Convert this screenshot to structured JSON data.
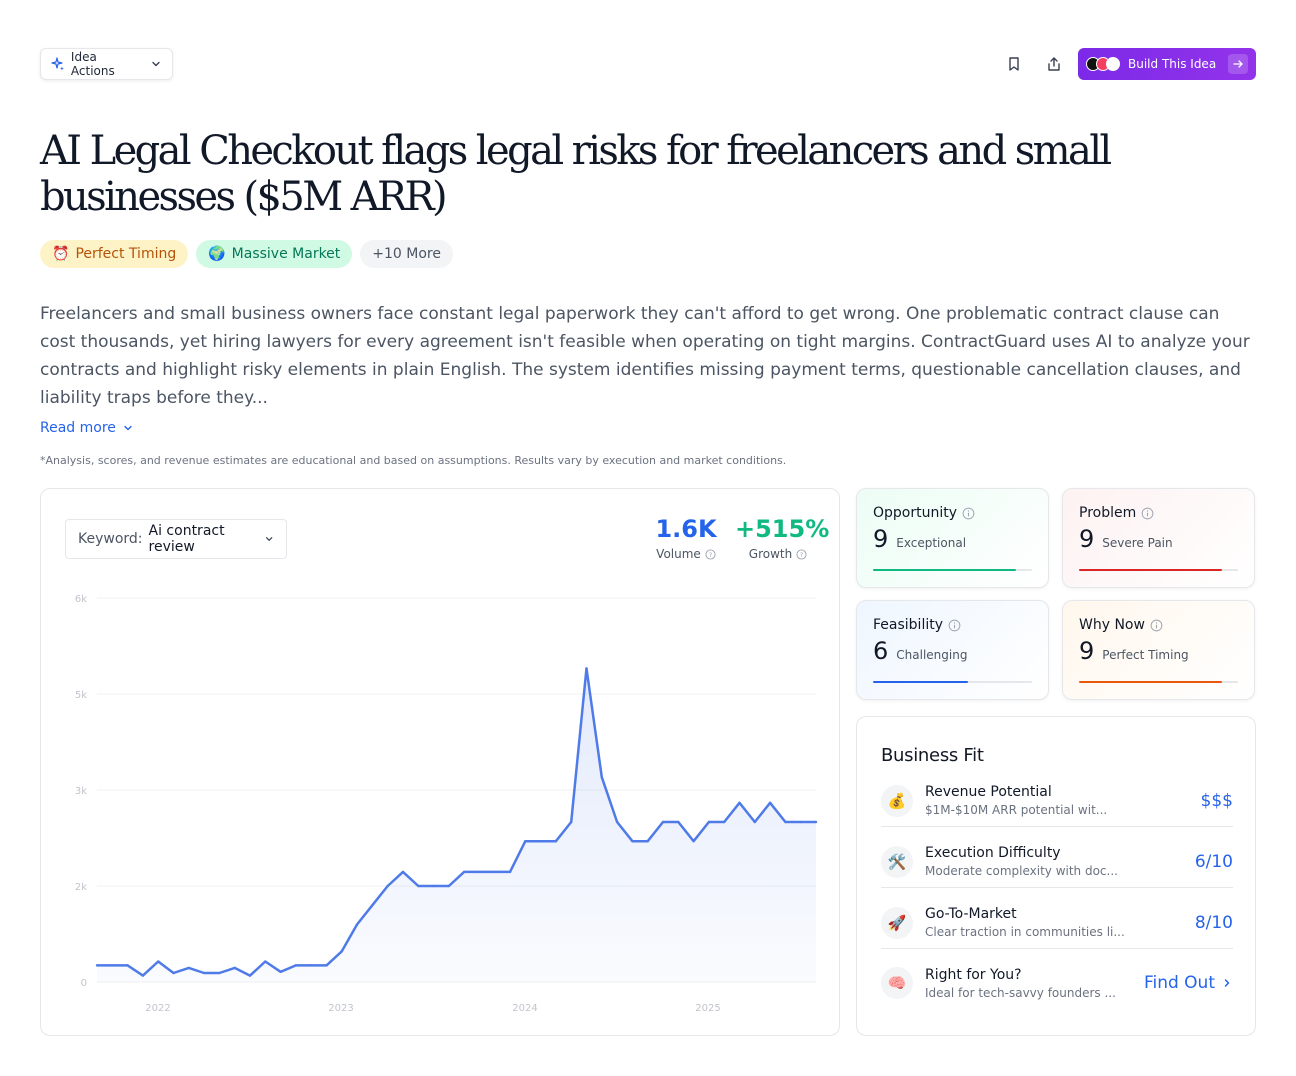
{
  "toolbar": {
    "idea_actions_label": "Idea Actions",
    "build_label": "Build This Idea"
  },
  "title": "AI Legal Checkout flags legal risks for freelancers and small businesses ($5M ARR)",
  "tags": [
    {
      "emoji": "⏰",
      "label": "Perfect Timing"
    },
    {
      "emoji": "🌍",
      "label": "Massive Market"
    },
    {
      "label": "+10 More"
    }
  ],
  "description": "Freelancers and small business owners face constant legal paperwork they can't afford to get wrong. One problematic contract clause can cost thousands, yet hiring lawyers for every agreement isn't feasible when operating on tight margins. ContractGuard uses AI to analyze your contracts and highlight risky elements in plain English. The system identifies missing payment terms, questionable cancellation clauses, and liability traps before they...",
  "read_more": "Read more",
  "disclaimer": "*Analysis, scores, and revenue estimates are educational and based on assumptions. Results vary by execution and market conditions.",
  "keyword": {
    "label": "Keyword:",
    "value": "Ai contract review"
  },
  "stats": {
    "volume": {
      "value": "1.6K",
      "label": "Volume",
      "color": "#2563eb"
    },
    "growth": {
      "value": "+515%",
      "label": "Growth",
      "color": "#10b981"
    }
  },
  "chart_data": {
    "type": "area",
    "x_tick_labels": [
      "2022",
      "2023",
      "2024",
      "2025"
    ],
    "y_tick_labels": [
      "0",
      "2k",
      "3k",
      "5k",
      "6k"
    ],
    "ylim": [
      0,
      6
    ],
    "values": [
      0.26,
      0.26,
      0.26,
      0.1,
      0.32,
      0.14,
      0.22,
      0.14,
      0.14,
      0.22,
      0.1,
      0.32,
      0.16,
      0.26,
      0.26,
      0.26,
      0.48,
      0.9,
      1.2,
      1.5,
      1.72,
      1.5,
      1.5,
      1.5,
      1.72,
      1.72,
      1.72,
      1.72,
      2.2,
      2.2,
      2.2,
      2.5,
      4.9,
      3.2,
      2.5,
      2.2,
      2.2,
      2.5,
      2.5,
      2.2,
      2.5,
      2.5,
      2.8,
      2.5,
      2.8,
      2.5,
      2.5,
      2.5
    ],
    "line_color": "#4f7be8",
    "grid": true
  },
  "scores": [
    {
      "label": "Opportunity",
      "value": "9",
      "desc": "Exceptional",
      "fill": 0.9,
      "color": "#10b981",
      "bg": "#ecfdf5"
    },
    {
      "label": "Problem",
      "value": "9",
      "desc": "Severe Pain",
      "fill": 0.9,
      "color": "#dc2626",
      "bg": "#fef2f2"
    },
    {
      "label": "Feasibility",
      "value": "6",
      "desc": "Challenging",
      "fill": 0.6,
      "color": "#2563eb",
      "bg": "#eff6ff"
    },
    {
      "label": "Why Now",
      "value": "9",
      "desc": "Perfect Timing",
      "fill": 0.9,
      "color": "#ea580c",
      "bg": "#fff7ed"
    }
  ],
  "business_fit": {
    "title": "Business Fit",
    "rows": [
      {
        "icon": "💰",
        "name": "Revenue Potential",
        "sub": "$1M-$10M ARR potential wit...",
        "value": "$$$"
      },
      {
        "icon": "🛠️",
        "name": "Execution Difficulty",
        "sub": "Moderate complexity with doc...",
        "value": "6/10"
      },
      {
        "icon": "🚀",
        "name": "Go-To-Market",
        "sub": "Clear traction in communities li...",
        "value": "8/10"
      },
      {
        "icon": "🧠",
        "name": "Right for You?",
        "sub": "Ideal for tech-savvy founders ...",
        "value": "Find Out"
      }
    ]
  }
}
